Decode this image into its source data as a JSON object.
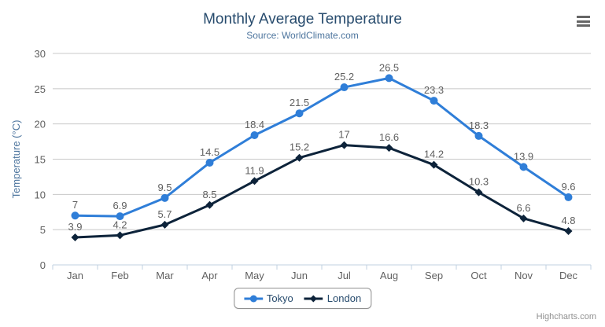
{
  "chart": {
    "title": "Monthly Average Temperature",
    "subtitle": "Source: WorldClimate.com",
    "credits": "Highcharts.com",
    "context_menu_icon": "hamburger-icon"
  },
  "chart_data": {
    "type": "line",
    "title": "Monthly Average Temperature",
    "subtitle": "Source: WorldClimate.com",
    "categories": [
      "Jan",
      "Feb",
      "Mar",
      "Apr",
      "May",
      "Jun",
      "Jul",
      "Aug",
      "Sep",
      "Oct",
      "Nov",
      "Dec"
    ],
    "series": [
      {
        "name": "Tokyo",
        "color": "#2f7ed8",
        "marker": "circle",
        "values": [
          7,
          6.9,
          9.5,
          14.5,
          18.4,
          21.5,
          25.2,
          26.5,
          23.3,
          18.3,
          13.9,
          9.6
        ]
      },
      {
        "name": "London",
        "color": "#0d233a",
        "marker": "diamond",
        "values": [
          3.9,
          4.2,
          5.7,
          8.5,
          11.9,
          15.2,
          17,
          16.6,
          14.2,
          10.3,
          6.6,
          4.8
        ]
      }
    ],
    "xlabel": "",
    "ylabel": "Temperature (°C)",
    "ylim": [
      0,
      30
    ],
    "yticks": [
      0,
      5,
      10,
      15,
      20,
      25,
      30
    ],
    "grid": true,
    "data_labels": true,
    "legend_position": "bottom"
  },
  "colors": {
    "title": "#274b6d",
    "subtitle": "#4d759e",
    "axis_title": "#4d759e",
    "axis_labels": "#606060",
    "data_labels": "#606060",
    "gridline": "#c8c8c8",
    "axis_line": "#c0d0e0",
    "legend_border": "#909090",
    "legend_text": "#274b6d",
    "credits": "#909090",
    "menu_icon": "#666666",
    "background": "#ffffff"
  }
}
